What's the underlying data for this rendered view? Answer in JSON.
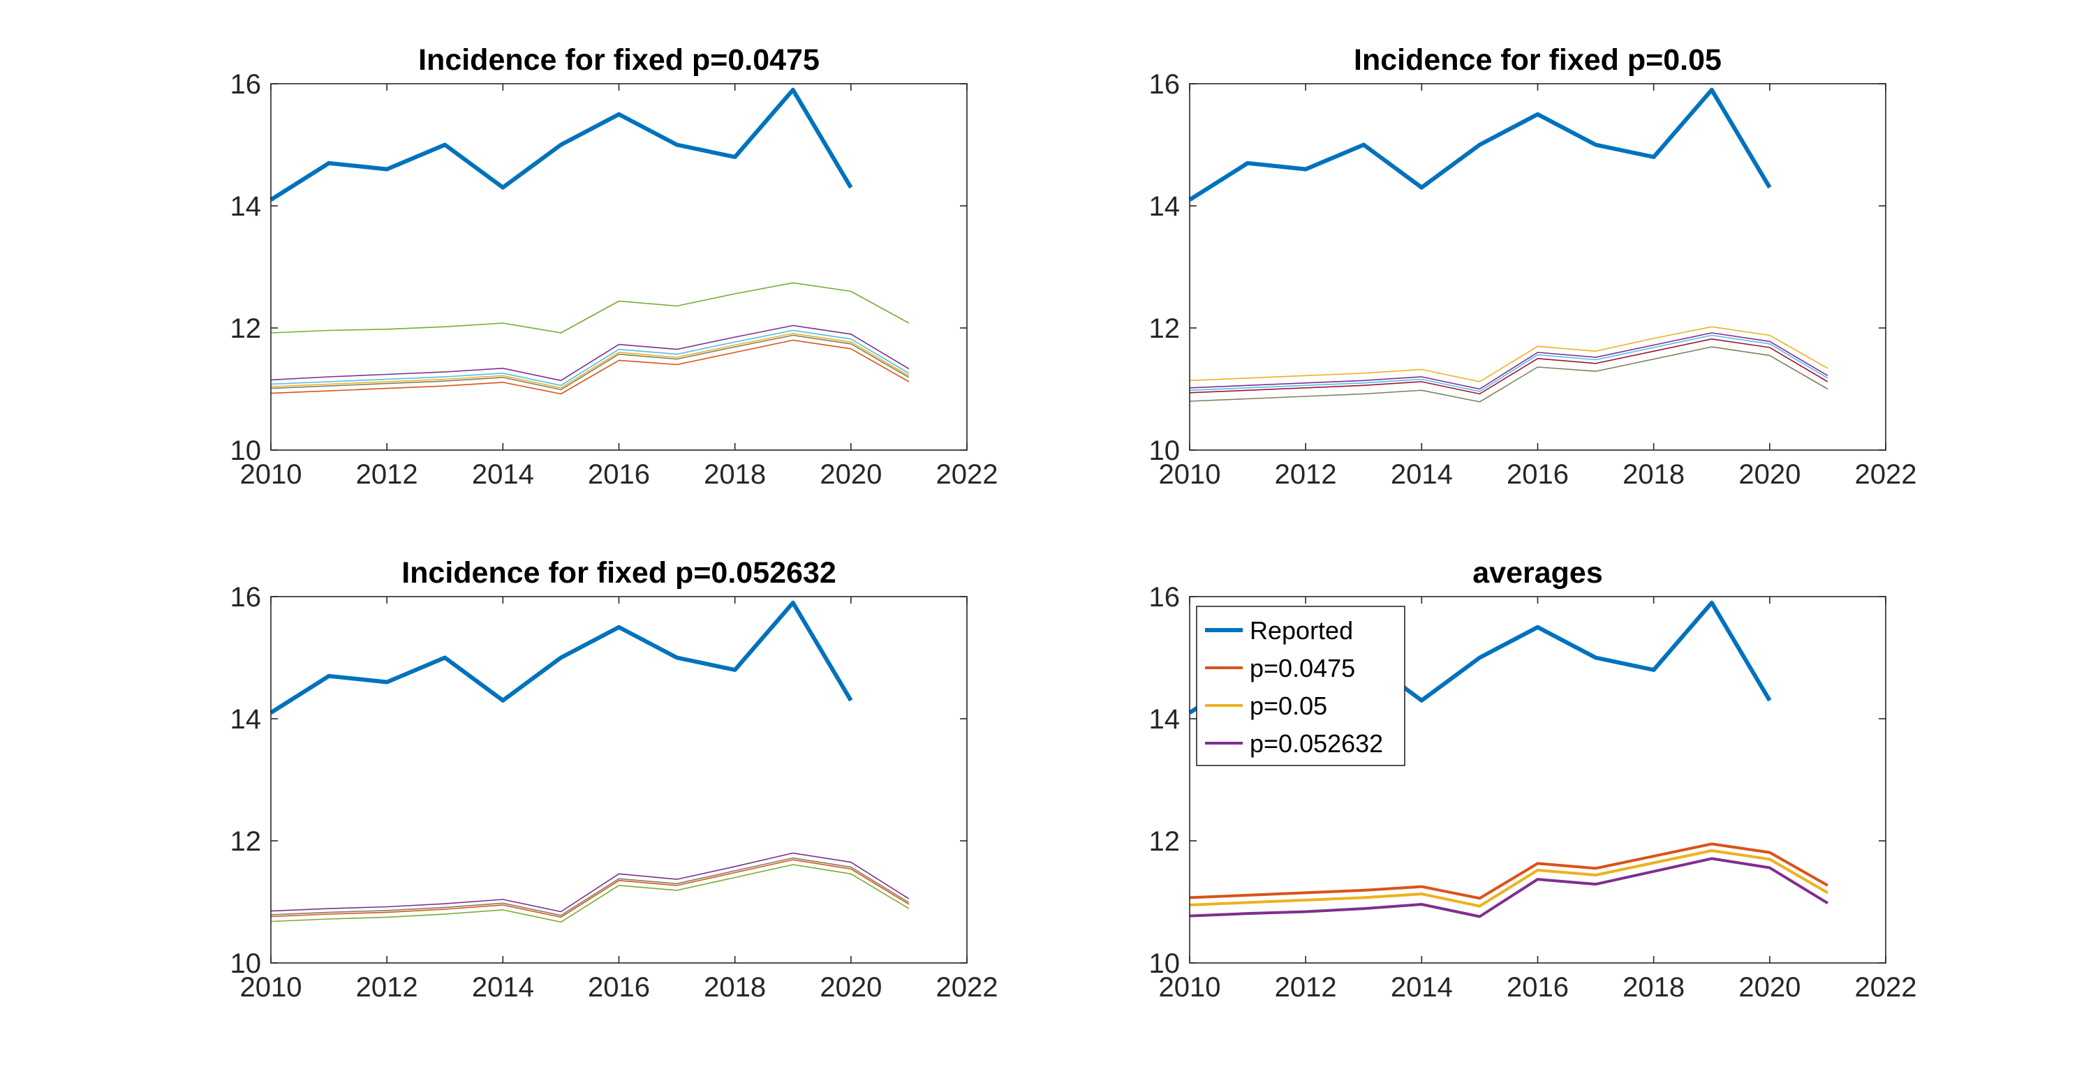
{
  "chart_data": [
    {
      "type": "line",
      "title": "Incidence for fixed p=0.0475",
      "xlabel": "",
      "ylabel": "",
      "xlim": [
        2010,
        2022
      ],
      "ylim": [
        10,
        16
      ],
      "xticks": [
        2010,
        2012,
        2014,
        2016,
        2018,
        2020,
        2022
      ],
      "yticks": [
        10,
        12,
        14,
        16
      ],
      "grid": false,
      "series": [
        {
          "color": "#0072BD",
          "width": 3,
          "x": [
            2010,
            2011,
            2012,
            2013,
            2014,
            2015,
            2016,
            2017,
            2018,
            2019,
            2020
          ],
          "y": [
            14.1,
            14.7,
            14.6,
            15.0,
            14.3,
            15.0,
            15.5,
            15.0,
            14.8,
            15.9,
            14.3
          ]
        },
        {
          "color": "#77AC30",
          "width": 0.8,
          "x": [
            2010,
            2011,
            2012,
            2013,
            2014,
            2015,
            2016,
            2017,
            2018,
            2019,
            2020,
            2021
          ],
          "y": [
            11.92,
            11.96,
            11.98,
            12.02,
            12.08,
            11.92,
            12.44,
            12.36,
            12.56,
            12.74,
            12.6,
            12.08
          ]
        },
        {
          "color": "#7E2F8E",
          "width": 0.8,
          "x": [
            2010,
            2011,
            2012,
            2013,
            2014,
            2015,
            2016,
            2017,
            2018,
            2019,
            2020,
            2021
          ],
          "y": [
            11.15,
            11.2,
            11.24,
            11.28,
            11.34,
            11.14,
            11.73,
            11.65,
            11.85,
            12.04,
            11.9,
            11.33
          ]
        },
        {
          "color": "#4DBEEE",
          "width": 0.8,
          "x": [
            2010,
            2011,
            2012,
            2013,
            2014,
            2015,
            2016,
            2017,
            2018,
            2019,
            2020,
            2021
          ],
          "y": [
            11.08,
            11.12,
            11.16,
            11.2,
            11.26,
            11.06,
            11.65,
            11.57,
            11.77,
            11.96,
            11.82,
            11.26
          ]
        },
        {
          "color": "#EDB120",
          "width": 0.8,
          "x": [
            2010,
            2011,
            2012,
            2013,
            2014,
            2015,
            2016,
            2017,
            2018,
            2019,
            2020,
            2021
          ],
          "y": [
            11.04,
            11.08,
            11.12,
            11.16,
            11.22,
            11.02,
            11.6,
            11.52,
            11.72,
            11.91,
            11.77,
            11.22
          ]
        },
        {
          "color": "#7F7F5F",
          "width": 0.8,
          "x": [
            2010,
            2011,
            2012,
            2013,
            2014,
            2015,
            2016,
            2017,
            2018,
            2019,
            2020,
            2021
          ],
          "y": [
            11.01,
            11.05,
            11.09,
            11.13,
            11.19,
            10.99,
            11.57,
            11.49,
            11.69,
            11.88,
            11.74,
            11.19
          ]
        },
        {
          "color": "#D95319",
          "width": 0.8,
          "x": [
            2010,
            2011,
            2012,
            2013,
            2014,
            2015,
            2016,
            2017,
            2018,
            2019,
            2020,
            2021
          ],
          "y": [
            10.93,
            10.97,
            11.01,
            11.05,
            11.11,
            10.92,
            11.47,
            11.4,
            11.6,
            11.8,
            11.66,
            11.12
          ]
        }
      ]
    },
    {
      "type": "line",
      "title": "Incidence for fixed p=0.05",
      "xlabel": "",
      "ylabel": "",
      "xlim": [
        2010,
        2022
      ],
      "ylim": [
        10,
        16
      ],
      "xticks": [
        2010,
        2012,
        2014,
        2016,
        2018,
        2020,
        2022
      ],
      "yticks": [
        10,
        12,
        14,
        16
      ],
      "grid": false,
      "series": [
        {
          "color": "#0072BD",
          "width": 3,
          "x": [
            2010,
            2011,
            2012,
            2013,
            2014,
            2015,
            2016,
            2017,
            2018,
            2019,
            2020
          ],
          "y": [
            14.1,
            14.7,
            14.6,
            15.0,
            14.3,
            15.0,
            15.5,
            15.0,
            14.8,
            15.9,
            14.3
          ]
        },
        {
          "color": "#EDB120",
          "width": 0.8,
          "x": [
            2010,
            2011,
            2012,
            2013,
            2014,
            2015,
            2016,
            2017,
            2018,
            2019,
            2020,
            2021
          ],
          "y": [
            11.14,
            11.18,
            11.22,
            11.26,
            11.32,
            11.12,
            11.7,
            11.62,
            11.83,
            12.02,
            11.88,
            11.34
          ]
        },
        {
          "color": "#7E2F8E",
          "width": 0.8,
          "x": [
            2010,
            2011,
            2012,
            2013,
            2014,
            2015,
            2016,
            2017,
            2018,
            2019,
            2020,
            2021
          ],
          "y": [
            11.02,
            11.06,
            11.1,
            11.14,
            11.2,
            11.0,
            11.6,
            11.52,
            11.72,
            11.92,
            11.78,
            11.22
          ]
        },
        {
          "color": "#4DBEEE",
          "width": 0.8,
          "x": [
            2010,
            2011,
            2012,
            2013,
            2014,
            2015,
            2016,
            2017,
            2018,
            2019,
            2020,
            2021
          ],
          "y": [
            10.98,
            11.02,
            11.06,
            11.1,
            11.16,
            10.96,
            11.56,
            11.48,
            11.68,
            11.88,
            11.74,
            11.18
          ]
        },
        {
          "color": "#A2142F",
          "width": 0.8,
          "x": [
            2010,
            2011,
            2012,
            2013,
            2014,
            2015,
            2016,
            2017,
            2018,
            2019,
            2020,
            2021
          ],
          "y": [
            10.94,
            10.98,
            11.02,
            11.06,
            11.12,
            10.92,
            11.5,
            11.42,
            11.62,
            11.82,
            11.68,
            11.12
          ]
        },
        {
          "color": "#7F7F5F",
          "width": 0.8,
          "x": [
            2010,
            2011,
            2012,
            2013,
            2014,
            2015,
            2016,
            2017,
            2018,
            2019,
            2020,
            2021
          ],
          "y": [
            10.8,
            10.84,
            10.88,
            10.92,
            10.98,
            10.79,
            11.36,
            11.29,
            11.49,
            11.69,
            11.55,
            11.0
          ]
        }
      ]
    },
    {
      "type": "line",
      "title": "Incidence for fixed p=0.052632",
      "xlabel": "",
      "ylabel": "",
      "xlim": [
        2010,
        2022
      ],
      "ylim": [
        10,
        16
      ],
      "xticks": [
        2010,
        2012,
        2014,
        2016,
        2018,
        2020,
        2022
      ],
      "yticks": [
        10,
        12,
        14,
        16
      ],
      "grid": false,
      "series": [
        {
          "color": "#0072BD",
          "width": 3,
          "x": [
            2010,
            2011,
            2012,
            2013,
            2014,
            2015,
            2016,
            2017,
            2018,
            2019,
            2020
          ],
          "y": [
            14.1,
            14.7,
            14.6,
            15.0,
            14.3,
            15.0,
            15.5,
            15.0,
            14.8,
            15.9,
            14.3
          ]
        },
        {
          "color": "#7E2F8E",
          "width": 0.8,
          "x": [
            2010,
            2011,
            2012,
            2013,
            2014,
            2015,
            2016,
            2017,
            2018,
            2019,
            2020,
            2021
          ],
          "y": [
            10.85,
            10.89,
            10.92,
            10.97,
            11.04,
            10.84,
            11.46,
            11.37,
            11.58,
            11.8,
            11.65,
            11.05
          ]
        },
        {
          "color": "#7F7F5F",
          "width": 0.8,
          "x": [
            2010,
            2011,
            2012,
            2013,
            2014,
            2015,
            2016,
            2017,
            2018,
            2019,
            2020,
            2021
          ],
          "y": [
            10.79,
            10.83,
            10.86,
            10.91,
            10.98,
            10.78,
            11.38,
            11.3,
            11.51,
            11.72,
            11.57,
            10.99
          ]
        },
        {
          "color": "#D95319",
          "width": 0.8,
          "x": [
            2010,
            2011,
            2012,
            2013,
            2014,
            2015,
            2016,
            2017,
            2018,
            2019,
            2020,
            2021
          ],
          "y": [
            10.76,
            10.8,
            10.83,
            10.88,
            10.95,
            10.75,
            11.35,
            11.27,
            11.48,
            11.69,
            11.54,
            10.96
          ]
        },
        {
          "color": "#77AC30",
          "width": 0.8,
          "x": [
            2010,
            2011,
            2012,
            2013,
            2014,
            2015,
            2016,
            2017,
            2018,
            2019,
            2020,
            2021
          ],
          "y": [
            10.68,
            10.72,
            10.75,
            10.8,
            10.87,
            10.67,
            11.27,
            11.19,
            11.4,
            11.61,
            11.46,
            10.89
          ]
        }
      ]
    },
    {
      "type": "line",
      "title": "averages",
      "xlabel": "",
      "ylabel": "",
      "xlim": [
        2010,
        2022
      ],
      "ylim": [
        10,
        16
      ],
      "xticks": [
        2010,
        2012,
        2014,
        2016,
        2018,
        2020,
        2022
      ],
      "yticks": [
        10,
        12,
        14,
        16
      ],
      "grid": false,
      "legend": "top-left",
      "series": [
        {
          "name": "Reported",
          "color": "#0072BD",
          "width": 3,
          "x": [
            2010,
            2011,
            2012,
            2013,
            2014,
            2015,
            2016,
            2017,
            2018,
            2019,
            2020
          ],
          "y": [
            14.1,
            14.7,
            14.6,
            15.0,
            14.3,
            15.0,
            15.5,
            15.0,
            14.8,
            15.9,
            14.3
          ]
        },
        {
          "name": "p=0.0475",
          "color": "#D95319",
          "width": 2,
          "x": [
            2010,
            2011,
            2012,
            2013,
            2014,
            2015,
            2016,
            2017,
            2018,
            2019,
            2020,
            2021
          ],
          "y": [
            11.07,
            11.11,
            11.15,
            11.19,
            11.25,
            11.06,
            11.63,
            11.55,
            11.75,
            11.95,
            11.81,
            11.27
          ]
        },
        {
          "name": "p=0.05",
          "color": "#EDB120",
          "width": 2,
          "x": [
            2010,
            2011,
            2012,
            2013,
            2014,
            2015,
            2016,
            2017,
            2018,
            2019,
            2020,
            2021
          ],
          "y": [
            10.95,
            10.99,
            11.03,
            11.07,
            11.13,
            10.93,
            11.52,
            11.44,
            11.64,
            11.84,
            11.7,
            11.15
          ]
        },
        {
          "name": "p=0.052632",
          "color": "#7E2F8E",
          "width": 2,
          "x": [
            2010,
            2011,
            2012,
            2013,
            2014,
            2015,
            2016,
            2017,
            2018,
            2019,
            2020,
            2021
          ],
          "y": [
            10.77,
            10.81,
            10.84,
            10.89,
            10.96,
            10.76,
            11.37,
            11.29,
            11.5,
            11.71,
            11.56,
            10.98
          ]
        }
      ]
    }
  ]
}
